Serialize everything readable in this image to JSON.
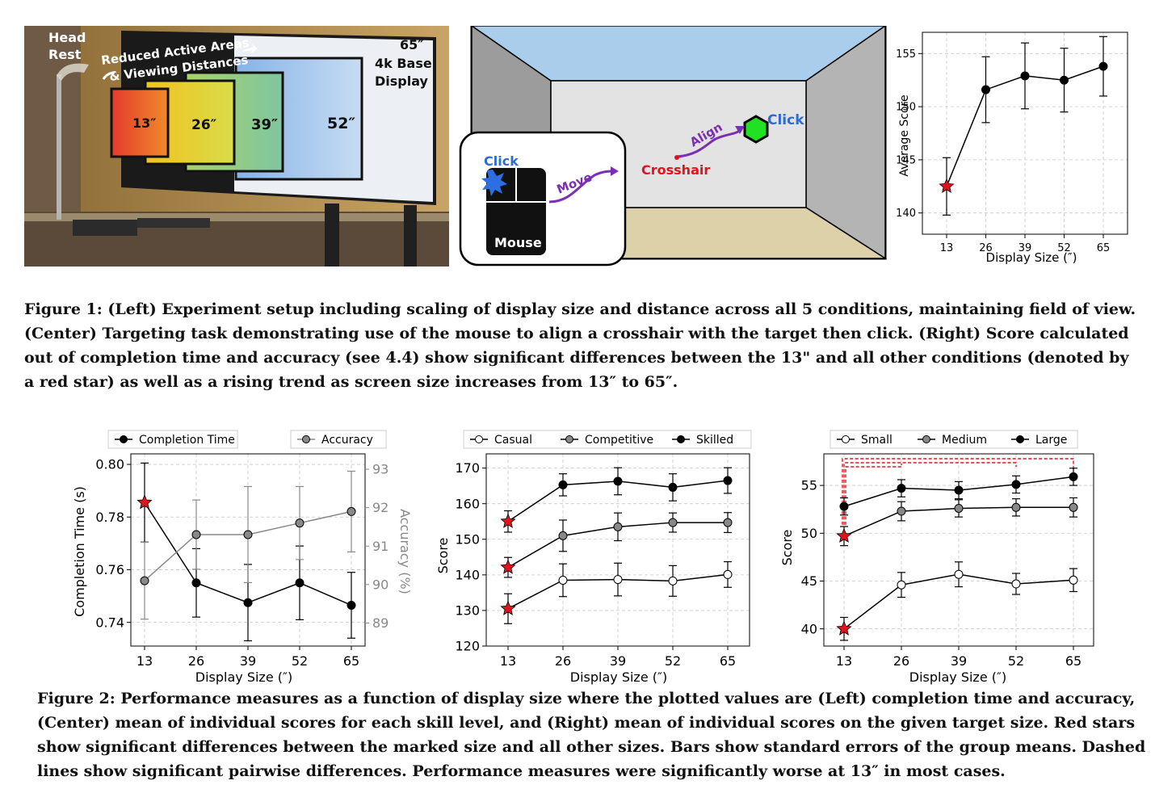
{
  "figure1": {
    "photo": {
      "labels": {
        "head_rest": [
          "Head",
          "Rest"
        ],
        "reduced": [
          "Reduced Active Areas",
          "& Viewing Distances"
        ],
        "base": [
          "65″",
          "4k Base",
          "Display"
        ],
        "sizes": [
          "13″",
          "26″",
          "39″",
          "52″"
        ]
      }
    },
    "task": {
      "click_target": "Click",
      "align": "Align",
      "crosshair": "Crosshair",
      "click_mouse": "Click",
      "move": "Move",
      "mouse": "Mouse",
      "colors": {
        "ceiling": "#a9cdea",
        "target": "#22e022",
        "crosshair": "#e0141e",
        "path": "#7b2fb5"
      }
    },
    "caption": [
      "Figure 1: (Left) Experiment setup including scaling of display size and distance across all 5 conditions, maintaining field of view.",
      "(Center) Targeting task demonstrating use of the mouse to align a crosshair with the target then click. (Right) Score calculated",
      "out of completion time and accuracy (see 4.4) show significant differences between the 13\" and all other conditions (denoted by",
      "a red star) as well as a rising trend as screen size increases from 13″ to 65″."
    ]
  },
  "figure2": {
    "caption": [
      "Figure 2: Performance measures as a function of display size where the plotted values are (Left) completion time and accuracy,",
      "(Center) mean of individual scores for each skill level, and (Right) mean of individual scores on the given target size. Red stars",
      "show significant differences between the marked size and all other sizes. Bars show standard errors of the group means. Dashed",
      "lines show significant pairwise differences. Performance measures were significantly worse at 13″ in most cases."
    ]
  },
  "chart_data": [
    {
      "id": "fig1-right",
      "type": "line",
      "x": [
        13,
        26,
        39,
        52,
        65
      ],
      "xlabel": "Display Size (″)",
      "ylabel": "Average Score",
      "ylim": [
        138,
        157
      ],
      "yticks": [
        140,
        145,
        150,
        155
      ],
      "grid": true,
      "series": [
        {
          "values": [
            142.5,
            151.6,
            152.9,
            152.5,
            153.8
          ],
          "err": [
            2.7,
            3.1,
            3.1,
            3.0,
            2.8
          ],
          "color": "#000000",
          "marker_fill": "#000000",
          "star_index": [
            0
          ]
        }
      ]
    },
    {
      "id": "fig2-left",
      "type": "line",
      "x": [
        13,
        26,
        39,
        52,
        65
      ],
      "xlabel": "Display Size (″)",
      "ylabel": "Completion Time (s)",
      "ylabel_right": "Accuracy (%)",
      "ylim": [
        0.731,
        0.804
      ],
      "yticks": [
        0.74,
        0.76,
        0.78,
        0.8
      ],
      "ylim_right": [
        88.4,
        93.4
      ],
      "yticks_right": [
        89,
        90,
        91,
        92,
        93
      ],
      "grid": true,
      "legend": "top",
      "series": [
        {
          "name": "Completion Time",
          "axis": "left",
          "values": [
            0.7855,
            0.755,
            0.7475,
            0.755,
            0.7465
          ],
          "err": [
            0.015,
            0.013,
            0.0145,
            0.014,
            0.0125
          ],
          "color": "#000000",
          "marker_fill": "#000000",
          "star_index": [
            0
          ]
        },
        {
          "name": "Accuracy",
          "axis": "right",
          "values": [
            90.1,
            91.3,
            91.3,
            91.6,
            91.9
          ],
          "err": [
            1.0,
            0.9,
            1.25,
            0.95,
            1.05
          ],
          "color": "#888888",
          "marker_fill": "#888888",
          "star_index": []
        }
      ]
    },
    {
      "id": "fig2-center",
      "type": "line",
      "x": [
        13,
        26,
        39,
        52,
        65
      ],
      "xlabel": "Display Size (″)",
      "ylabel": "Score",
      "ylim": [
        120,
        174
      ],
      "yticks": [
        120,
        130,
        140,
        150,
        160,
        170
      ],
      "grid": true,
      "legend": "top",
      "series": [
        {
          "name": "Casual",
          "values": [
            130.5,
            138.5,
            138.7,
            138.3,
            140.1
          ],
          "err": [
            4.2,
            4.6,
            4.6,
            4.3,
            3.6
          ],
          "color": "#000000",
          "marker_fill": "#ffffff",
          "star_index": [
            0
          ]
        },
        {
          "name": "Competitive",
          "values": [
            142.1,
            151.0,
            153.5,
            154.7,
            154.7
          ],
          "err": [
            2.8,
            4.4,
            3.9,
            2.7,
            2.8
          ],
          "color": "#000000",
          "marker_fill": "#888888",
          "star_index": [
            0
          ]
        },
        {
          "name": "Skilled",
          "values": [
            155.0,
            165.3,
            166.3,
            164.6,
            166.5
          ],
          "err": [
            3.0,
            3.1,
            3.8,
            3.8,
            3.6
          ],
          "color": "#000000",
          "marker_fill": "#000000",
          "star_index": [
            0
          ]
        }
      ]
    },
    {
      "id": "fig2-right",
      "type": "line",
      "x": [
        13,
        26,
        39,
        52,
        65
      ],
      "xlabel": "Display Size (″)",
      "ylabel": "Score",
      "ylim": [
        38.2,
        58.3
      ],
      "yticks": [
        40,
        45,
        50,
        55
      ],
      "grid": true,
      "legend": "top",
      "series": [
        {
          "name": "Small",
          "values": [
            40.0,
            44.6,
            45.7,
            44.7,
            45.1
          ],
          "err": [
            1.2,
            1.3,
            1.3,
            1.1,
            1.2
          ],
          "color": "#000000",
          "marker_fill": "#ffffff",
          "star_index": [
            0
          ]
        },
        {
          "name": "Medium",
          "values": [
            49.7,
            52.3,
            52.6,
            52.7,
            52.7
          ],
          "err": [
            1.0,
            1.0,
            0.9,
            0.9,
            1.0
          ],
          "color": "#000000",
          "marker_fill": "#888888",
          "star_index": [
            0
          ]
        },
        {
          "name": "Large",
          "values": [
            52.8,
            54.7,
            54.5,
            55.1,
            55.9
          ],
          "err": [
            0.9,
            0.9,
            0.9,
            0.9,
            0.9
          ],
          "color": "#000000",
          "marker_fill": "#000000",
          "star_index": []
        }
      ],
      "pairwise_brackets": [
        [
          13,
          26
        ],
        [
          13,
          52
        ],
        [
          13,
          65
        ]
      ],
      "bracket_color": "#e0141e"
    }
  ]
}
